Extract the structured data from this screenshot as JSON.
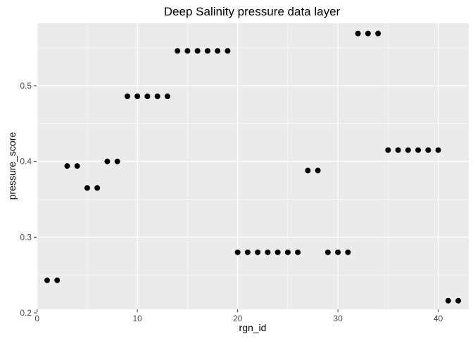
{
  "chart_data": {
    "type": "scatter",
    "title": "Deep Salinity pressure data layer",
    "xlabel": "rgn_id",
    "ylabel": "pressure_score",
    "xlim": [
      -0.05,
      43.05
    ],
    "ylim": [
      0.2046,
      0.5826
    ],
    "xticks": [
      0,
      10,
      20,
      30,
      40
    ],
    "xtick_labels": [
      "0",
      "10",
      "20",
      "30",
      "40"
    ],
    "yticks": [
      0.2,
      0.3,
      0.4,
      0.5
    ],
    "ytick_labels": [
      "0.2",
      "0.3",
      "0.4",
      "0.5"
    ],
    "grid": true,
    "panel_background": "#ebebeb",
    "grid_color": "#ffffff",
    "point_color": "#000000",
    "legend": "none",
    "points": [
      {
        "x": 1,
        "y": 0.243
      },
      {
        "x": 2,
        "y": 0.243
      },
      {
        "x": 3,
        "y": 0.394
      },
      {
        "x": 4,
        "y": 0.394
      },
      {
        "x": 5,
        "y": 0.365
      },
      {
        "x": 6,
        "y": 0.365
      },
      {
        "x": 7,
        "y": 0.4
      },
      {
        "x": 8,
        "y": 0.4
      },
      {
        "x": 9,
        "y": 0.486
      },
      {
        "x": 10,
        "y": 0.486
      },
      {
        "x": 11,
        "y": 0.486
      },
      {
        "x": 12,
        "y": 0.486
      },
      {
        "x": 13,
        "y": 0.486
      },
      {
        "x": 14,
        "y": 0.546
      },
      {
        "x": 15,
        "y": 0.546
      },
      {
        "x": 16,
        "y": 0.546
      },
      {
        "x": 17,
        "y": 0.546
      },
      {
        "x": 18,
        "y": 0.546
      },
      {
        "x": 19,
        "y": 0.546
      },
      {
        "x": 20,
        "y": 0.28
      },
      {
        "x": 21,
        "y": 0.28
      },
      {
        "x": 22,
        "y": 0.28
      },
      {
        "x": 23,
        "y": 0.28
      },
      {
        "x": 24,
        "y": 0.28
      },
      {
        "x": 25,
        "y": 0.28
      },
      {
        "x": 26,
        "y": 0.28
      },
      {
        "x": 27,
        "y": 0.388
      },
      {
        "x": 28,
        "y": 0.388
      },
      {
        "x": 29,
        "y": 0.28
      },
      {
        "x": 30,
        "y": 0.28
      },
      {
        "x": 31,
        "y": 0.28
      },
      {
        "x": 32,
        "y": 0.569
      },
      {
        "x": 33,
        "y": 0.569
      },
      {
        "x": 34,
        "y": 0.569
      },
      {
        "x": 35,
        "y": 0.415
      },
      {
        "x": 36,
        "y": 0.415
      },
      {
        "x": 37,
        "y": 0.415
      },
      {
        "x": 38,
        "y": 0.415
      },
      {
        "x": 39,
        "y": 0.415
      },
      {
        "x": 40,
        "y": 0.415
      },
      {
        "x": 41,
        "y": 0.216
      },
      {
        "x": 42,
        "y": 0.216
      }
    ]
  }
}
